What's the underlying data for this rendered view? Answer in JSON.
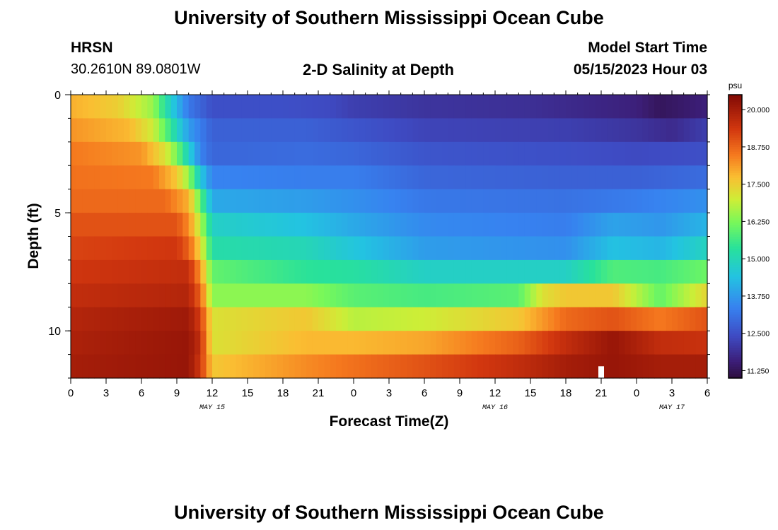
{
  "page": {
    "title_top": "University of Southern Mississippi Ocean Cube",
    "title_bottom": "University of Southern Mississippi Ocean Cube",
    "station": "HRSN",
    "coords": "30.2610N  89.0801W",
    "plot_title": "2-D Salinity at Depth",
    "model_start_label": "Model Start Time",
    "model_start_value": "05/15/2023 Hour 03"
  },
  "chart_data": {
    "type": "heatmap",
    "title": "2-D Salinity at Depth",
    "xlabel": "Forecast Time(Z)",
    "ylabel": "Depth (ft)",
    "x_ticks": [
      "0",
      "3",
      "6",
      "9",
      "12",
      "15",
      "18",
      "21",
      "0",
      "3",
      "6",
      "9",
      "12",
      "15",
      "18",
      "21",
      "0",
      "3",
      "6"
    ],
    "x_hours_range": [
      0,
      54
    ],
    "day_labels": [
      {
        "text": "MAY 15",
        "hour": 12
      },
      {
        "text": "MAY 16",
        "hour": 36
      },
      {
        "text": "MAY 17",
        "hour": 51
      }
    ],
    "y_ticks": [
      "0",
      "5",
      "10"
    ],
    "y_tick_values": [
      0,
      5,
      10
    ],
    "ylim": [
      0,
      12
    ],
    "colorbar": {
      "unit": "psu",
      "ticks": [
        "20.000",
        "18.750",
        "17.500",
        "16.250",
        "15.000",
        "13.750",
        "12.500",
        "11.250"
      ],
      "tick_values": [
        20.0,
        18.75,
        17.5,
        16.25,
        15.0,
        13.75,
        12.5,
        11.25
      ],
      "min": 11.0,
      "max": 20.5
    },
    "missing_cell": {
      "hour": 45,
      "depth": 11.75
    },
    "rows": [
      {
        "depth": 0.5,
        "keyframes": [
          [
            0,
            17.9
          ],
          [
            4,
            17.5
          ],
          [
            7,
            16.5
          ],
          [
            8,
            15.3
          ],
          [
            9,
            14.2
          ],
          [
            10,
            13.2
          ],
          [
            12,
            12.5
          ],
          [
            18,
            12.5
          ],
          [
            22,
            12.4
          ],
          [
            24,
            12.2
          ],
          [
            30,
            12.0
          ],
          [
            39,
            11.9
          ],
          [
            42,
            11.8
          ],
          [
            48,
            11.6
          ],
          [
            50,
            11.3
          ],
          [
            54,
            11.6
          ]
        ]
      },
      {
        "depth": 1.5,
        "keyframes": [
          [
            0,
            18.2
          ],
          [
            5,
            17.8
          ],
          [
            7,
            17.0
          ],
          [
            8,
            16.0
          ],
          [
            9,
            14.9
          ],
          [
            10,
            13.8
          ],
          [
            12,
            12.8
          ],
          [
            20,
            12.8
          ],
          [
            24,
            12.6
          ],
          [
            30,
            12.3
          ],
          [
            42,
            12.2
          ],
          [
            48,
            12.0
          ],
          [
            51,
            11.8
          ],
          [
            54,
            12.2
          ]
        ]
      },
      {
        "depth": 2.5,
        "keyframes": [
          [
            0,
            18.5
          ],
          [
            6,
            18.2
          ],
          [
            8,
            17.2
          ],
          [
            9,
            16.2
          ],
          [
            10,
            14.8
          ],
          [
            11,
            13.4
          ],
          [
            12,
            12.9
          ],
          [
            20,
            13.0
          ],
          [
            24,
            12.9
          ],
          [
            30,
            12.6
          ],
          [
            42,
            12.5
          ],
          [
            48,
            12.4
          ],
          [
            54,
            12.5
          ]
        ]
      },
      {
        "depth": 3.5,
        "keyframes": [
          [
            0,
            18.6
          ],
          [
            7,
            18.5
          ],
          [
            9,
            17.6
          ],
          [
            10,
            16.5
          ],
          [
            11,
            14.6
          ],
          [
            12,
            13.4
          ],
          [
            20,
            13.3
          ],
          [
            24,
            13.3
          ],
          [
            30,
            12.9
          ],
          [
            42,
            12.8
          ],
          [
            48,
            12.8
          ],
          [
            54,
            13.0
          ]
        ]
      },
      {
        "depth": 4.5,
        "keyframes": [
          [
            0,
            18.7
          ],
          [
            8,
            18.7
          ],
          [
            10,
            17.9
          ],
          [
            11,
            16.0
          ],
          [
            12,
            14.0
          ],
          [
            20,
            13.8
          ],
          [
            24,
            13.6
          ],
          [
            30,
            13.2
          ],
          [
            42,
            13.1
          ],
          [
            48,
            13.3
          ],
          [
            54,
            13.6
          ]
        ]
      },
      {
        "depth": 5.5,
        "keyframes": [
          [
            0,
            19.0
          ],
          [
            9,
            19.0
          ],
          [
            10,
            18.3
          ],
          [
            11,
            16.8
          ],
          [
            12,
            14.8
          ],
          [
            20,
            14.4
          ],
          [
            24,
            14.0
          ],
          [
            30,
            13.5
          ],
          [
            42,
            13.3
          ],
          [
            46,
            13.9
          ],
          [
            50,
            13.7
          ],
          [
            54,
            14.2
          ]
        ]
      },
      {
        "depth": 6.5,
        "keyframes": [
          [
            0,
            19.2
          ],
          [
            9,
            19.4
          ],
          [
            10,
            18.8
          ],
          [
            11,
            17.4
          ],
          [
            12,
            15.2
          ],
          [
            20,
            15.0
          ],
          [
            24,
            14.5
          ],
          [
            30,
            13.8
          ],
          [
            42,
            13.6
          ],
          [
            46,
            14.4
          ],
          [
            50,
            14.2
          ],
          [
            54,
            14.9
          ]
        ]
      },
      {
        "depth": 7.5,
        "keyframes": [
          [
            0,
            19.4
          ],
          [
            10,
            19.6
          ],
          [
            11,
            18.2
          ],
          [
            12,
            16.0
          ],
          [
            20,
            15.4
          ],
          [
            24,
            15.3
          ],
          [
            30,
            14.8
          ],
          [
            42,
            14.8
          ],
          [
            46,
            15.8
          ],
          [
            50,
            15.7
          ],
          [
            54,
            16.1
          ]
        ]
      },
      {
        "depth": 8.5,
        "keyframes": [
          [
            0,
            19.6
          ],
          [
            10,
            19.8
          ],
          [
            11,
            18.8
          ],
          [
            12,
            16.4
          ],
          [
            20,
            16.4
          ],
          [
            24,
            15.9
          ],
          [
            30,
            15.7
          ],
          [
            38,
            15.9
          ],
          [
            40,
            17.2
          ],
          [
            42,
            17.6
          ],
          [
            46,
            17.6
          ],
          [
            50,
            16.0
          ],
          [
            54,
            17.4
          ]
        ]
      },
      {
        "depth": 9.5,
        "keyframes": [
          [
            0,
            19.8
          ],
          [
            10,
            20.1
          ],
          [
            11,
            19.3
          ],
          [
            12,
            17.2
          ],
          [
            20,
            17.6
          ],
          [
            24,
            16.8
          ],
          [
            30,
            17.0
          ],
          [
            38,
            17.6
          ],
          [
            42,
            18.7
          ],
          [
            46,
            19.0
          ],
          [
            50,
            18.5
          ],
          [
            54,
            19.0
          ]
        ]
      },
      {
        "depth": 10.5,
        "keyframes": [
          [
            0,
            19.9
          ],
          [
            10,
            20.2
          ],
          [
            11,
            19.6
          ],
          [
            12,
            17.2
          ],
          [
            20,
            17.8
          ],
          [
            24,
            17.8
          ],
          [
            30,
            18.0
          ],
          [
            38,
            18.8
          ],
          [
            42,
            19.6
          ],
          [
            46,
            20.2
          ],
          [
            50,
            19.6
          ],
          [
            54,
            19.5
          ]
        ]
      },
      {
        "depth": 11.5,
        "keyframes": [
          [
            0,
            20.0
          ],
          [
            10,
            20.2
          ],
          [
            11,
            19.4
          ],
          [
            12,
            17.6
          ],
          [
            20,
            18.3
          ],
          [
            24,
            18.6
          ],
          [
            30,
            19.0
          ],
          [
            38,
            19.6
          ],
          [
            42,
            20.0
          ],
          [
            46,
            20.2
          ],
          [
            50,
            20.0
          ],
          [
            54,
            20.0
          ]
        ]
      }
    ]
  }
}
